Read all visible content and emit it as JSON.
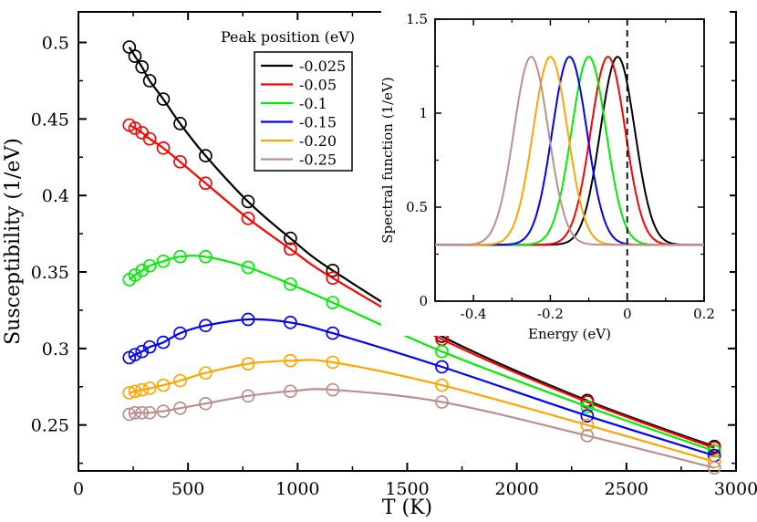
{
  "chart_data": [
    {
      "type": "line",
      "role": "main",
      "xlabel": "T (K)",
      "ylabel": "Susceptibility (1/eV)",
      "xlim": [
        0,
        3000
      ],
      "ylim": [
        0.22,
        0.52
      ],
      "xticks": [
        0,
        500,
        1000,
        1500,
        2000,
        2500,
        3000
      ],
      "yticks": [
        0.25,
        0.3,
        0.35,
        0.4,
        0.45,
        0.5
      ],
      "ytick_labels": [
        "0.25",
        "0.3",
        "0.35",
        "0.4",
        "0.45",
        "0.5"
      ],
      "legend_title": "Peak position (eV)",
      "legend_position": "top-center",
      "marker": "open-circle",
      "series": [
        {
          "name": "-0.025",
          "color": "#000000",
          "x": [
            232,
            258,
            290,
            325,
            387,
            464,
            580,
            774,
            967,
            1160,
            1658,
            2321,
            2901
          ],
          "y": [
            0.497,
            0.491,
            0.484,
            0.475,
            0.463,
            0.447,
            0.426,
            0.396,
            0.372,
            0.351,
            0.308,
            0.266,
            0.236
          ]
        },
        {
          "name": "-0.05",
          "color": "#ff0000",
          "x": [
            232,
            258,
            290,
            325,
            387,
            464,
            580,
            774,
            967,
            1160,
            1658,
            2321,
            2901
          ],
          "y": [
            0.446,
            0.444,
            0.441,
            0.437,
            0.431,
            0.422,
            0.408,
            0.385,
            0.365,
            0.346,
            0.306,
            0.265,
            0.235
          ]
        },
        {
          "name": "-0.1",
          "color": "#00ee00",
          "x": [
            232,
            258,
            290,
            325,
            387,
            464,
            580,
            774,
            967,
            1160,
            1658,
            2321,
            2901
          ],
          "y": [
            0.345,
            0.348,
            0.351,
            0.354,
            0.357,
            0.36,
            0.36,
            0.353,
            0.342,
            0.33,
            0.298,
            0.262,
            0.233
          ]
        },
        {
          "name": "-0.15",
          "color": "#0000ff",
          "x": [
            232,
            258,
            290,
            325,
            387,
            464,
            580,
            774,
            967,
            1160,
            1658,
            2321,
            2901
          ],
          "y": [
            0.294,
            0.296,
            0.298,
            0.301,
            0.304,
            0.31,
            0.315,
            0.319,
            0.317,
            0.31,
            0.288,
            0.256,
            0.23
          ]
        },
        {
          "name": "-0.20",
          "color": "#ffa500",
          "x": [
            232,
            258,
            290,
            325,
            387,
            464,
            580,
            774,
            967,
            1160,
            1658,
            2321,
            2901
          ],
          "y": [
            0.271,
            0.272,
            0.273,
            0.274,
            0.276,
            0.279,
            0.284,
            0.29,
            0.292,
            0.291,
            0.276,
            0.25,
            0.226
          ]
        },
        {
          "name": "-0.25",
          "color": "#bc8f8f",
          "x": [
            232,
            258,
            290,
            325,
            387,
            464,
            580,
            774,
            967,
            1160,
            1658,
            2321,
            2901
          ],
          "y": [
            0.257,
            0.258,
            0.258,
            0.258,
            0.259,
            0.261,
            0.264,
            0.269,
            0.272,
            0.273,
            0.265,
            0.243,
            0.222
          ]
        }
      ]
    },
    {
      "type": "line",
      "role": "inset",
      "xlabel": "Energy (eV)",
      "ylabel": "Spectral function (1/eV)",
      "xlim": [
        -0.5,
        0.2
      ],
      "ylim": [
        0,
        1.5
      ],
      "xticks": [
        -0.4,
        -0.2,
        0,
        0.2
      ],
      "xtick_labels": [
        "-0.4",
        "-0.2",
        "0",
        "0.2"
      ],
      "yticks": [
        0,
        0.5,
        1,
        1.5
      ],
      "ytick_labels": [
        "0",
        "0.5",
        "1",
        "1.5"
      ],
      "baseline": 0.3,
      "peak_height": 1.3,
      "gaussian_sigma": 0.045,
      "reference_line": {
        "x": 0,
        "style": "dashed"
      },
      "series": [
        {
          "name": "-0.025",
          "color": "#000000",
          "peak": -0.025
        },
        {
          "name": "-0.05",
          "color": "#ff0000",
          "peak": -0.05
        },
        {
          "name": "-0.1",
          "color": "#00ee00",
          "peak": -0.1
        },
        {
          "name": "-0.15",
          "color": "#0000ff",
          "peak": -0.15
        },
        {
          "name": "-0.20",
          "color": "#ffa500",
          "peak": -0.2
        },
        {
          "name": "-0.25",
          "color": "#bc8f8f",
          "peak": -0.25
        }
      ]
    }
  ]
}
